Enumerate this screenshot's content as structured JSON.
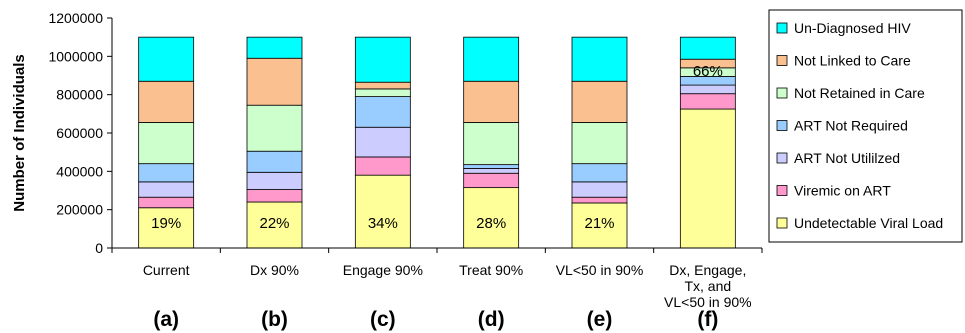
{
  "chart_data": {
    "type": "bar",
    "stacked": true,
    "title": "",
    "xlabel": "",
    "ylabel": "Number of Individuals",
    "ylim": [
      0,
      1200000
    ],
    "yticks": [
      "0",
      "200000",
      "400000",
      "600000",
      "800000",
      "1000000",
      "1200000"
    ],
    "ytick_values": [
      0,
      200000,
      400000,
      600000,
      800000,
      1000000,
      1200000
    ],
    "grid": false,
    "legend_position": "right",
    "categories": [
      "Current",
      "Dx 90%",
      "Engage 90%",
      "Treat 90%",
      "VL<50 in 90%",
      "Dx, Engage,\nTx, and\nVL<50 in 90%"
    ],
    "panel_labels": [
      "(a)",
      "(b)",
      "(c)",
      "(d)",
      "(e)",
      "(f)"
    ],
    "bar_labels": [
      "19%",
      "22%",
      "34%",
      "28%",
      "21%",
      "66%"
    ],
    "series": [
      {
        "name": "Undetectable Viral Load",
        "color": "#ffff99",
        "values": [
          210000,
          240000,
          380000,
          315000,
          235000,
          725000
        ]
      },
      {
        "name": "Viremic on ART",
        "color": "#ff99cc",
        "values": [
          55000,
          65000,
          95000,
          75000,
          30000,
          80000
        ]
      },
      {
        "name": "ART Not Utililzed",
        "color": "#ccccff",
        "values": [
          80000,
          90000,
          155000,
          25000,
          80000,
          45000
        ]
      },
      {
        "name": "ART Not Required",
        "color": "#99ccff",
        "values": [
          95000,
          110000,
          160000,
          20000,
          95000,
          45000
        ]
      },
      {
        "name": "Not Retained in Care",
        "color": "#ccffcc",
        "values": [
          215000,
          240000,
          40000,
          220000,
          215000,
          45000
        ]
      },
      {
        "name": "Not Linked to Care",
        "color": "#fac090",
        "values": [
          215000,
          245000,
          35000,
          215000,
          215000,
          45000
        ]
      },
      {
        "name": "Un-Diagnosed HIV",
        "color": "#00ffff",
        "values": [
          230000,
          110000,
          235000,
          230000,
          230000,
          115000
        ]
      }
    ]
  }
}
